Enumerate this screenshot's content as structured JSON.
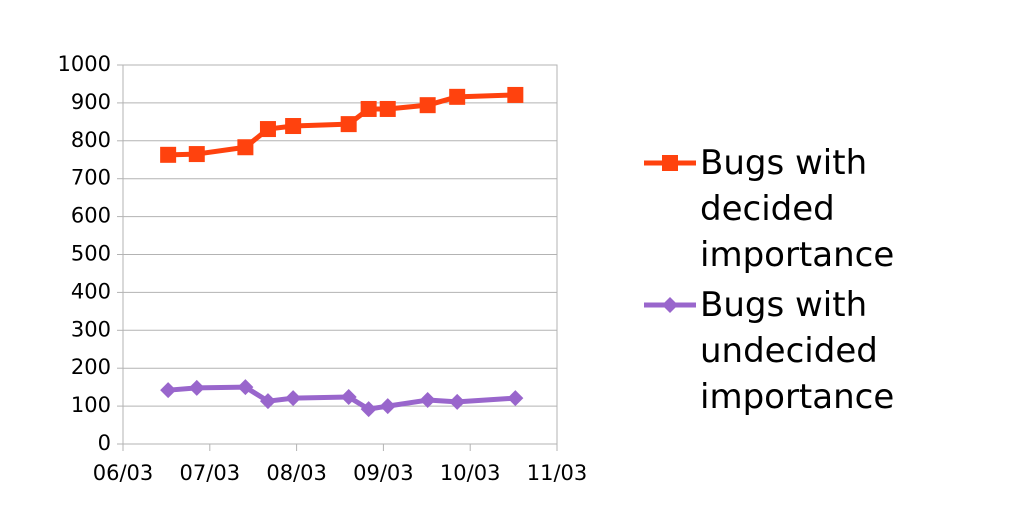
{
  "chart_data": {
    "type": "line",
    "x": [
      0.52,
      0.85,
      1.41,
      1.67,
      1.96,
      2.6,
      2.83,
      3.05,
      3.51,
      3.85,
      4.52
    ],
    "series": [
      {
        "name": "Bugs with decided importance",
        "color": "#ff420e",
        "marker": "square",
        "values": [
          763,
          765,
          783,
          831,
          839,
          844,
          884,
          884,
          894,
          916,
          921
        ]
      },
      {
        "name": "Bugs with undecided importance",
        "color": "#9966cc",
        "marker": "diamond",
        "values": [
          142,
          148,
          150,
          113,
          121,
          124,
          92,
          100,
          116,
          111,
          121
        ]
      }
    ],
    "xlim": [
      0,
      5
    ],
    "xticks": [
      {
        "value": 0,
        "label": "06/03"
      },
      {
        "value": 1,
        "label": "07/03"
      },
      {
        "value": 2,
        "label": "08/03"
      },
      {
        "value": 3,
        "label": "09/03"
      },
      {
        "value": 4,
        "label": "10/03"
      },
      {
        "value": 5,
        "label": "11/03"
      }
    ],
    "ylim": [
      0,
      1000
    ],
    "yticks": [
      0,
      100,
      200,
      300,
      400,
      500,
      600,
      700,
      800,
      900,
      1000
    ],
    "grid": true,
    "legend": "right"
  }
}
